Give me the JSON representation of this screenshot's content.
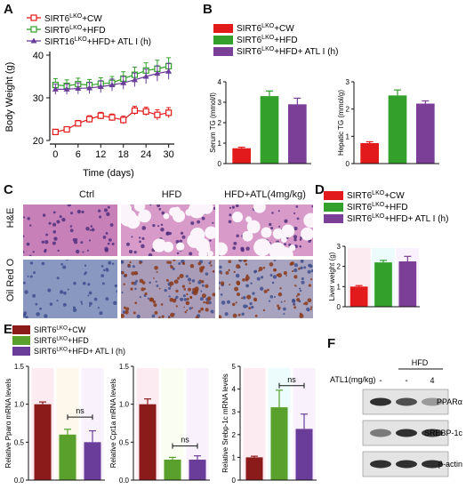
{
  "panels": {
    "A": "A",
    "B": "B",
    "C": "C",
    "D": "D",
    "E": "E",
    "F": "F"
  },
  "legend": {
    "a": [
      {
        "main": "SIRT6",
        "sup": "LKO",
        "rest": "+CW",
        "color": "#e31a1c",
        "marker": "square-open"
      },
      {
        "main": "SIRT6",
        "sup": "LKO",
        "rest": "+HFD",
        "color": "#33a02c",
        "marker": "square-open"
      },
      {
        "main": "SIRT16",
        "sup": "LKO",
        "rest": "+HFD+ ATL I (h)",
        "color": "#6a3d9a",
        "marker": "triangle"
      }
    ],
    "b": [
      {
        "main": "SIRT6",
        "sup": "LKO",
        "rest": "+CW",
        "color": "#e31a1c"
      },
      {
        "main": "SIRT6",
        "sup": "LKO",
        "rest": "+HFD",
        "color": "#33a02c"
      },
      {
        "main": "SIRT6",
        "sup": "LKO",
        "rest": "+HFD+ ATL I (h)",
        "color": "#7b3f98"
      }
    ],
    "d": [
      {
        "main": "SIRT6",
        "sup": "LKO",
        "rest": "+CW",
        "color": "#e31a1c"
      },
      {
        "main": "SIRT6",
        "sup": "LKO",
        "rest": "+HFD",
        "color": "#33a02c"
      },
      {
        "main": "SIRT6",
        "sup": "LKO",
        "rest": "+HFD+ ATL I (h)",
        "color": "#7b3f98"
      }
    ],
    "e": [
      {
        "main": "SIRT6",
        "sup": "LKO",
        "rest": "+CW",
        "color": "#8b1a1a"
      },
      {
        "main": "SIRT6",
        "sup": "LKO",
        "rest": "+HFD",
        "color": "#5aa02c"
      },
      {
        "main": "SIRT6",
        "sup": "LKO",
        "rest": "+HFD+ ATL I (h)",
        "color": "#6a3d9a"
      }
    ]
  },
  "chart_data": [
    {
      "id": "A",
      "type": "line",
      "xlabel": "Time (days)",
      "ylabel": "Body Weight (g)",
      "x": [
        0,
        3,
        6,
        9,
        12,
        15,
        18,
        21,
        24,
        27,
        30
      ],
      "xticks": [
        0,
        6,
        12,
        18,
        24,
        30
      ],
      "yticks": [
        20,
        30,
        40
      ],
      "ylim": [
        20,
        40
      ],
      "xlim": [
        -1.5,
        31.5
      ],
      "series": [
        {
          "name": "CW",
          "color": "#e31a1c",
          "marker": "square-open",
          "values": [
            22.0,
            22.6,
            24.0,
            25.0,
            25.8,
            25.4,
            24.8,
            27.0,
            26.8,
            26.0,
            26.5
          ],
          "err": [
            0.5,
            0.6,
            0.7,
            0.8,
            0.8,
            0.8,
            0.9,
            1.0,
            1.0,
            1.2,
            1.2
          ]
        },
        {
          "name": "HFD",
          "color": "#33a02c",
          "marker": "square-open",
          "values": [
            33.0,
            32.8,
            33.2,
            33.0,
            33.3,
            33.5,
            34.5,
            35.4,
            36.4,
            36.8,
            37.4
          ],
          "err": [
            1.5,
            1.4,
            1.4,
            1.3,
            1.4,
            1.5,
            1.6,
            1.8,
            1.8,
            2.0,
            2.0
          ]
        },
        {
          "name": "ATL",
          "color": "#6a3d9a",
          "marker": "triangle",
          "values": [
            32.0,
            32.0,
            32.2,
            32.3,
            32.6,
            33.0,
            33.5,
            34.2,
            35.0,
            35.7,
            36.2
          ],
          "err": [
            1.2,
            1.2,
            1.3,
            1.3,
            1.4,
            1.4,
            1.5,
            1.6,
            1.7,
            1.8,
            1.9
          ]
        }
      ]
    },
    {
      "id": "B1",
      "type": "bar",
      "ylabel": "Serum TG (mmol/l)",
      "categories": [
        "CW",
        "HFD",
        "HFD+ATL"
      ],
      "values": [
        0.75,
        3.3,
        2.9
      ],
      "err": [
        0.05,
        0.25,
        0.3
      ],
      "colors": [
        "#e31a1c",
        "#33a02c",
        "#7b3f98"
      ],
      "yticks": [
        0,
        1,
        2,
        3,
        4
      ],
      "ylim": [
        0,
        4
      ]
    },
    {
      "id": "B2",
      "type": "bar",
      "ylabel": "Hepatic TG (mmol/g)",
      "categories": [
        "CW",
        "HFD",
        "HFD+ATL"
      ],
      "values": [
        0.75,
        2.5,
        2.2
      ],
      "err": [
        0.05,
        0.2,
        0.1
      ],
      "colors": [
        "#e31a1c",
        "#33a02c",
        "#7b3f98"
      ],
      "yticks": [
        0,
        1,
        2,
        3
      ],
      "ylim": [
        0,
        3
      ]
    },
    {
      "id": "D",
      "type": "bar",
      "ylabel": "Liver weight (g)",
      "categories": [
        "CW",
        "HFD",
        "HFD+ATL"
      ],
      "values": [
        1.0,
        2.2,
        2.25
      ],
      "err": [
        0.05,
        0.1,
        0.25
      ],
      "colors": [
        "#e31a1c",
        "#33a02c",
        "#7b3f98"
      ],
      "yticks": [
        0,
        1,
        2,
        3
      ],
      "ylim": [
        0,
        3
      ]
    },
    {
      "id": "E1",
      "type": "bar",
      "ylabel": "Relative Pparα mRNA levels",
      "categories": [
        "CW",
        "HFD",
        "HFD+ATL"
      ],
      "values": [
        1.0,
        0.6,
        0.5
      ],
      "err": [
        0.03,
        0.07,
        0.15
      ],
      "colors": [
        "#8b1a1a",
        "#5aa02c",
        "#6a3d9a"
      ],
      "yticks": [
        0.0,
        0.5,
        1.0,
        1.5
      ],
      "ylim": [
        0,
        1.5
      ],
      "sig": {
        "label": "ns",
        "from": 1,
        "to": 2,
        "y": 0.83
      }
    },
    {
      "id": "E2",
      "type": "bar",
      "ylabel": "Relative Cpt1a mRNA levels",
      "categories": [
        "CW",
        "HFD",
        "HFD+ATL"
      ],
      "values": [
        1.0,
        0.27,
        0.27
      ],
      "err": [
        0.07,
        0.03,
        0.05
      ],
      "colors": [
        "#8b1a1a",
        "#5aa02c",
        "#6a3d9a"
      ],
      "yticks": [
        0.0,
        0.5,
        1.0,
        1.5
      ],
      "ylim": [
        0,
        1.5
      ],
      "sig": {
        "label": "ns",
        "from": 1,
        "to": 2,
        "y": 0.45
      }
    },
    {
      "id": "E3",
      "type": "bar",
      "ylabel": "Relative Srebp-1c mRNA levels",
      "categories": [
        "CW",
        "HFD",
        "HFD+ATL"
      ],
      "values": [
        1.0,
        3.2,
        2.25
      ],
      "err": [
        0.05,
        0.75,
        0.65
      ],
      "colors": [
        "#8b1a1a",
        "#5aa02c",
        "#6a3d9a"
      ],
      "yticks": [
        0,
        1,
        2,
        3,
        4,
        5
      ],
      "ylim": [
        0,
        5
      ],
      "sig": {
        "label": "ns",
        "from": 1,
        "to": 2,
        "y": 4.15
      }
    }
  ],
  "histology": {
    "columns": [
      "Ctrl",
      "HFD",
      "HFD+ATL(4mg/kg)"
    ],
    "rows": [
      "H&E",
      "Oil Red O"
    ]
  },
  "western": {
    "dose_label": "ATL1(mg/kg)",
    "group_label": "HFD",
    "lanes": [
      "-",
      "-",
      "4"
    ],
    "bands": [
      {
        "label": "PPARα",
        "intensity": [
          0.85,
          0.7,
          0.35
        ]
      },
      {
        "label": "SREBP-1c",
        "intensity": [
          0.5,
          0.85,
          0.8
        ]
      },
      {
        "label": "β-actin",
        "intensity": [
          0.85,
          0.85,
          0.85
        ]
      }
    ]
  }
}
